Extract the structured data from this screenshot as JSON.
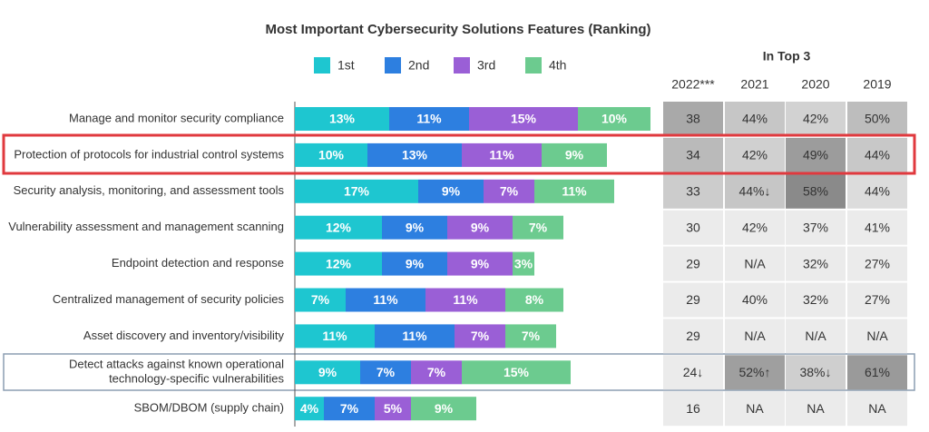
{
  "chart_data": {
    "type": "stacked-bar",
    "orientation": "horizontal",
    "title": "Most Important Cybersecurity Solutions Features (Ranking)",
    "categories": [
      "Manage and monitor security compliance",
      "Protection of protocols for industrial control systems",
      "Security analysis, monitoring, and assessment tools",
      "Vulnerability assessment and management scanning",
      "Endpoint detection and response",
      "Centralized management of security policies",
      "Asset discovery and inventory/visibility",
      [
        "Detect attacks against known operational",
        "technology-specific vulnerabilities"
      ],
      "SBOM/DBOM (supply chain)"
    ],
    "series": [
      {
        "name": "1st",
        "color": "#1ec6d0",
        "values": [
          13,
          10,
          17,
          12,
          12,
          7,
          11,
          9,
          4
        ],
        "value_labels": [
          "13%",
          "10%",
          "17%",
          "12%",
          "12%",
          "7%",
          "11%",
          "9%",
          "4%"
        ]
      },
      {
        "name": "2nd",
        "color": "#2d7fe0",
        "values": [
          11,
          13,
          9,
          9,
          9,
          11,
          11,
          7,
          7
        ],
        "value_labels": [
          "11%",
          "13%",
          "9%",
          "9%",
          "9%",
          "11%",
          "11%",
          "7%",
          "7%"
        ]
      },
      {
        "name": "3rd",
        "color": "#9a5fd6",
        "values": [
          15,
          11,
          7,
          9,
          9,
          11,
          7,
          7,
          5
        ],
        "value_labels": [
          "15%",
          "11%",
          "7%",
          "9%",
          "9%",
          "11%",
          "7%",
          "7%",
          "5%"
        ]
      },
      {
        "name": "4th",
        "color": "#6ccb8f",
        "values": [
          10,
          9,
          11,
          7,
          3,
          8,
          7,
          15,
          9
        ],
        "value_labels": [
          "10%",
          "9%",
          "11%",
          "7%",
          "3%",
          "8%",
          "7%",
          "15%",
          "9%"
        ]
      }
    ]
  },
  "table": {
    "title": "In Top 3",
    "columns": [
      "2022***",
      "2021",
      "2020",
      "2019"
    ],
    "rows": [
      [
        "38",
        "44%",
        "42%",
        "50%"
      ],
      [
        "34",
        "42%",
        "49%",
        "44%"
      ],
      [
        "33",
        "44%↓",
        "58%",
        "44%"
      ],
      [
        "30",
        "42%",
        "37%",
        "41%"
      ],
      [
        "29",
        "N/A",
        "32%",
        "27%"
      ],
      [
        "29",
        "40%",
        "32%",
        "27%"
      ],
      [
        "29",
        "N/A",
        "N/A",
        "N/A"
      ],
      [
        "24↓",
        "52%↑",
        "38%↓",
        "61%"
      ],
      [
        "16",
        "NA",
        "NA",
        "NA"
      ]
    ],
    "shades": [
      [
        "#a9a9a9",
        "#c6c6c6",
        "#d2d2d2",
        "#bdbdbd"
      ],
      [
        "#bababa",
        "#d0d0d0",
        "#9c9c9c",
        "#c8c8c8"
      ],
      [
        "#cccccc",
        "#c6c6c6",
        "#8a8a8a",
        "#dcdcdc"
      ],
      [
        "#ebebeb",
        "#ebebeb",
        "#ebebeb",
        "#ebebeb"
      ],
      [
        "#ebebeb",
        "#ebebeb",
        "#ebebeb",
        "#ebebeb"
      ],
      [
        "#ebebeb",
        "#ebebeb",
        "#ebebeb",
        "#ebebeb"
      ],
      [
        "#ebebeb",
        "#ebebeb",
        "#ebebeb",
        "#ebebeb"
      ],
      [
        "#ebebeb",
        "#9f9f9f",
        "#cfcfcf",
        "#9a9a9a"
      ],
      [
        "#ebebeb",
        "#ebebeb",
        "#ebebeb",
        "#ebebeb"
      ]
    ]
  }
}
